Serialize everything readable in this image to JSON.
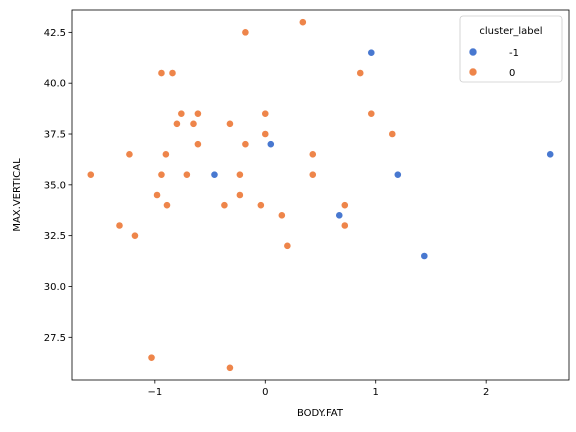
{
  "chart_data": {
    "type": "scatter",
    "xlabel": "BODY.FAT",
    "ylabel": "MAX.VERTICAL",
    "xlim": [
      -1.75,
      2.75
    ],
    "ylim": [
      25.4,
      43.6
    ],
    "x_ticks": [
      {
        "value": -1,
        "label": "−1"
      },
      {
        "value": 0,
        "label": "0"
      },
      {
        "value": 1,
        "label": "1"
      },
      {
        "value": 2,
        "label": "2"
      }
    ],
    "y_ticks": [
      {
        "value": 27.5,
        "label": "27.5"
      },
      {
        "value": 30.0,
        "label": "30.0"
      },
      {
        "value": 32.5,
        "label": "32.5"
      },
      {
        "value": 35.0,
        "label": "35.0"
      },
      {
        "value": 37.5,
        "label": "37.5"
      },
      {
        "value": 40.0,
        "label": "40.0"
      },
      {
        "value": 42.5,
        "label": "42.5"
      }
    ],
    "grid": false,
    "legend": {
      "title": "cluster_label",
      "placement": "top-right"
    },
    "series": [
      {
        "name": "-1",
        "color": "#4878d0",
        "points": [
          [
            -0.46,
            35.5
          ],
          [
            0.05,
            37.0
          ],
          [
            0.67,
            33.5
          ],
          [
            0.96,
            41.5
          ],
          [
            1.2,
            35.5
          ],
          [
            1.44,
            31.5
          ],
          [
            2.58,
            36.5
          ]
        ]
      },
      {
        "name": "0",
        "color": "#ee854a",
        "points": [
          [
            -1.58,
            35.5
          ],
          [
            -1.32,
            33.0
          ],
          [
            -1.23,
            36.5
          ],
          [
            -1.18,
            32.5
          ],
          [
            -1.03,
            26.5
          ],
          [
            -0.98,
            34.5
          ],
          [
            -0.94,
            40.5
          ],
          [
            -0.94,
            35.5
          ],
          [
            -0.9,
            36.5
          ],
          [
            -0.89,
            34.0
          ],
          [
            -0.84,
            40.5
          ],
          [
            -0.8,
            38.0
          ],
          [
            -0.76,
            38.5
          ],
          [
            -0.71,
            35.5
          ],
          [
            -0.65,
            38.0
          ],
          [
            -0.61,
            38.5
          ],
          [
            -0.61,
            37.0
          ],
          [
            -0.37,
            34.0
          ],
          [
            -0.32,
            38.0
          ],
          [
            -0.32,
            26.0
          ],
          [
            -0.23,
            34.5
          ],
          [
            -0.23,
            35.5
          ],
          [
            -0.18,
            42.5
          ],
          [
            -0.18,
            37.0
          ],
          [
            -0.04,
            34.0
          ],
          [
            0.0,
            38.5
          ],
          [
            0.0,
            37.5
          ],
          [
            0.15,
            33.5
          ],
          [
            0.2,
            32.0
          ],
          [
            0.34,
            43.0
          ],
          [
            0.43,
            36.5
          ],
          [
            0.43,
            35.5
          ],
          [
            0.72,
            34.0
          ],
          [
            0.72,
            33.0
          ],
          [
            0.86,
            40.5
          ],
          [
            0.96,
            38.5
          ],
          [
            1.15,
            37.5
          ]
        ]
      }
    ]
  }
}
